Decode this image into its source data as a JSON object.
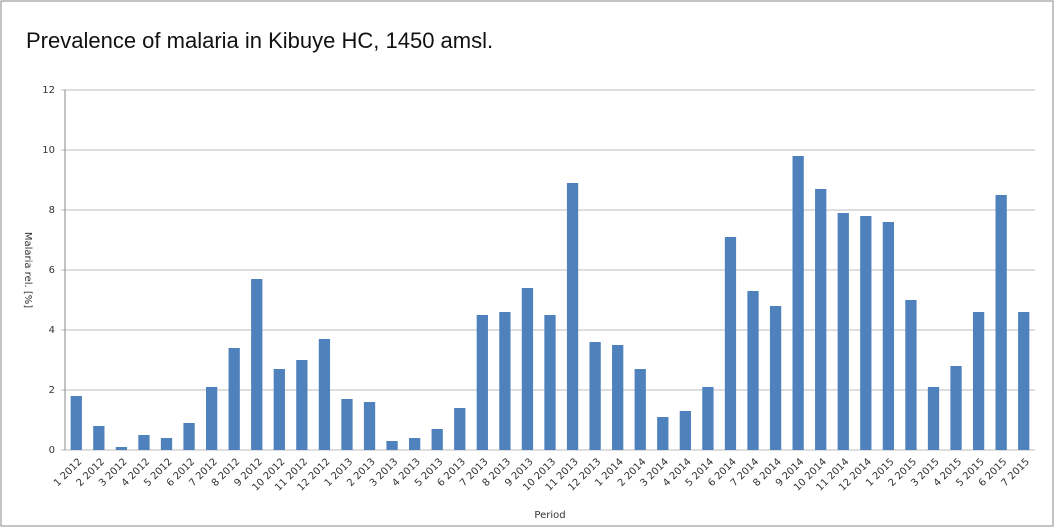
{
  "chart_data": {
    "type": "bar",
    "title": "Prevalence of malaria in Kibuye HC, 1450 amsl.",
    "x_label": "Period",
    "y_label": "Malaria rel. [%]",
    "categories": [
      "1 2012",
      "2 2012",
      "3 2012",
      "4 2012",
      "5 2012",
      "6 2012",
      "7 2012",
      "8 2012",
      "9 2012",
      "10 2012",
      "11 2012",
      "12 2012",
      "1 2013",
      "2 2013",
      "3 2013",
      "4 2013",
      "5 2013",
      "6 2013",
      "7 2013",
      "8 2013",
      "9 2013",
      "10 2013",
      "11 2013",
      "12 2013",
      "1 2014",
      "2 2014",
      "3 2014",
      "4 2014",
      "5 2014",
      "6 2014",
      "7 2014",
      "8 2014",
      "9 2014",
      "10 2014",
      "11 2014",
      "12 2014",
      "1 2015",
      "2 2015",
      "3 2015",
      "4 2015",
      "5 2015",
      "6 2015",
      "7 2015"
    ],
    "values": [
      1.8,
      0.8,
      0.1,
      0.5,
      0.4,
      0.9,
      2.1,
      3.4,
      5.7,
      2.7,
      3.0,
      3.7,
      1.7,
      1.6,
      0.3,
      0.4,
      0.7,
      1.4,
      4.5,
      4.6,
      5.4,
      4.5,
      8.9,
      3.6,
      3.5,
      2.7,
      1.1,
      1.3,
      2.1,
      7.1,
      5.3,
      4.8,
      9.8,
      8.7,
      7.9,
      7.8,
      7.6,
      5.0,
      2.1,
      2.8,
      4.6,
      8.5,
      4.6
    ],
    "color": "#4f81bd",
    "ylim": [
      0,
      12
    ],
    "yticks": [
      0,
      2,
      4,
      6,
      8,
      10,
      12
    ],
    "grid": true
  }
}
